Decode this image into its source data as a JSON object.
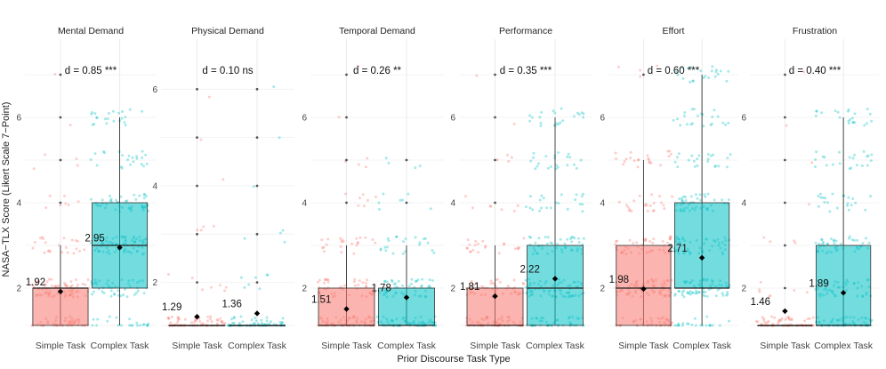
{
  "chart_data": {
    "type": "box",
    "ylabel": "NASA−TLX Score (Likert Scale 7−Point)",
    "xlabel": "Prior Discourse Task Type",
    "categories": [
      "Simple Task",
      "Complex Task"
    ],
    "colors": {
      "simple": "#F8766D",
      "complex": "#00BFC4",
      "grid": "#ebebeb",
      "text": "#222222"
    },
    "panels": [
      {
        "title": "Mental Demand",
        "ylim": [
          1,
          7
        ],
        "yticks": [
          2,
          4,
          6
        ],
        "ytick_labels": [
          "2",
          "4",
          "6"
        ],
        "effect_label": "d = 0.85 ***",
        "boxes": [
          {
            "category": "Simple Task",
            "q1": 1,
            "median": 2,
            "q3": 2,
            "whisker_low": 1,
            "whisker_high": 3,
            "mean": 1.92,
            "mean_label": "1.92",
            "outliers": [
              4,
              5,
              6,
              7
            ]
          },
          {
            "category": "Complex Task",
            "q1": 2,
            "median": 3,
            "q3": 4,
            "whisker_low": 1,
            "whisker_high": 6,
            "mean": 2.95,
            "mean_label": "2.95",
            "outliers": []
          }
        ]
      },
      {
        "title": "Physical Demand",
        "ylim": [
          1,
          6.3
        ],
        "yticks": [
          2,
          4,
          6
        ],
        "ytick_labels": [
          "2",
          "4",
          "6"
        ],
        "effect_label": "d = 0.10 ns",
        "boxes": [
          {
            "category": "Simple Task",
            "q1": 1,
            "median": 1,
            "q3": 1,
            "whisker_low": 1,
            "whisker_high": 1,
            "mean": 1.29,
            "mean_label": "1.29",
            "outliers": [
              2,
              3,
              4,
              5,
              6
            ]
          },
          {
            "category": "Complex Task",
            "q1": 1,
            "median": 1,
            "q3": 1,
            "whisker_low": 1,
            "whisker_high": 1,
            "mean": 1.36,
            "mean_label": "1.36",
            "outliers": [
              2,
              3,
              4,
              5,
              6
            ]
          }
        ]
      },
      {
        "title": "Temporal Demand",
        "ylim": [
          1,
          7
        ],
        "yticks": [
          2,
          4,
          6
        ],
        "ytick_labels": [
          "2",
          "4",
          "6"
        ],
        "effect_label": "d = 0.26 **",
        "boxes": [
          {
            "category": "Simple Task",
            "q1": 1,
            "median": 1,
            "q3": 2,
            "whisker_low": 1,
            "whisker_high": 3,
            "mean": 1.51,
            "mean_label": "1.51",
            "outliers": [
              4,
              5,
              6,
              7
            ]
          },
          {
            "category": "Complex Task",
            "q1": 1,
            "median": 1,
            "q3": 2,
            "whisker_low": 1,
            "whisker_high": 3,
            "mean": 1.78,
            "mean_label": "1.78",
            "outliers": [
              4,
              5
            ]
          }
        ]
      },
      {
        "title": "Performance",
        "ylim": [
          1,
          7
        ],
        "yticks": [
          2,
          4,
          6
        ],
        "ytick_labels": [
          "2",
          "4",
          "6"
        ],
        "effect_label": "d = 0.35 ***",
        "boxes": [
          {
            "category": "Simple Task",
            "q1": 1,
            "median": 1,
            "q3": 2,
            "whisker_low": 1,
            "whisker_high": 3,
            "mean": 1.81,
            "mean_label": "1.81",
            "outliers": [
              4,
              5,
              6,
              7
            ]
          },
          {
            "category": "Complex Task",
            "q1": 1,
            "median": 2,
            "q3": 3,
            "whisker_low": 1,
            "whisker_high": 6,
            "mean": 2.22,
            "mean_label": "2.22",
            "outliers": []
          }
        ]
      },
      {
        "title": "Effort",
        "ylim": [
          1,
          7
        ],
        "yticks": [
          2,
          4,
          6
        ],
        "ytick_labels": [
          "2",
          "4",
          "6"
        ],
        "effect_label": "d = 0.60 ***",
        "boxes": [
          {
            "category": "Simple Task",
            "q1": 1,
            "median": 2,
            "q3": 3,
            "whisker_low": 1,
            "whisker_high": 5,
            "mean": 1.98,
            "mean_label": "1.98",
            "outliers": [
              7
            ]
          },
          {
            "category": "Complex Task",
            "q1": 2,
            "median": 2,
            "q3": 4,
            "whisker_low": 1,
            "whisker_high": 7,
            "mean": 2.71,
            "mean_label": "2.71",
            "outliers": []
          }
        ]
      },
      {
        "title": "Frustration",
        "ylim": [
          1,
          7
        ],
        "yticks": [
          2,
          4,
          6
        ],
        "ytick_labels": [
          "2",
          "4",
          "6"
        ],
        "effect_label": "d = 0.40 ***",
        "boxes": [
          {
            "category": "Simple Task",
            "q1": 1,
            "median": 1,
            "q3": 1,
            "whisker_low": 1,
            "whisker_high": 1,
            "mean": 1.46,
            "mean_label": "1.46",
            "outliers": [
              2,
              3,
              4,
              5,
              6,
              7
            ]
          },
          {
            "category": "Complex Task",
            "q1": 1,
            "median": 1,
            "q3": 3,
            "whisker_low": 1,
            "whisker_high": 6,
            "mean": 1.89,
            "mean_label": "1.89",
            "outliers": []
          }
        ]
      }
    ]
  }
}
